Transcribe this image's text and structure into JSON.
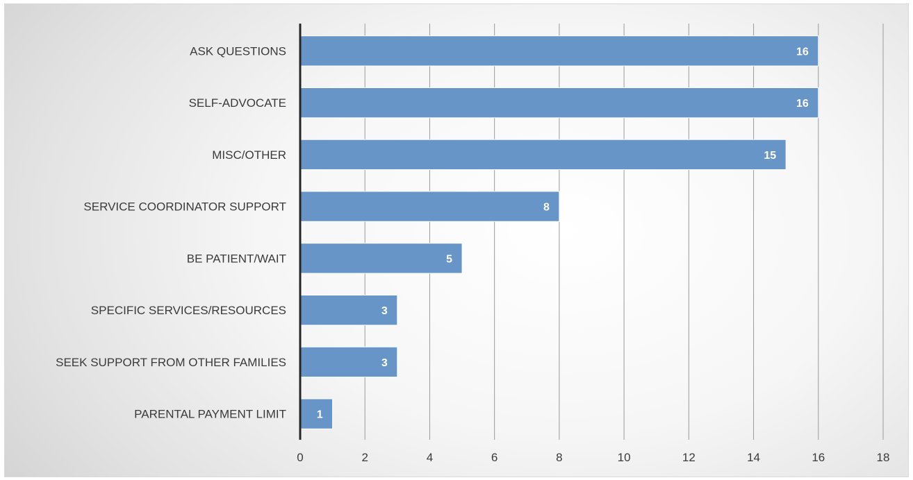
{
  "chart_data": {
    "type": "bar",
    "orientation": "horizontal",
    "title": "",
    "xlabel": "",
    "ylabel": "",
    "categories": [
      "ASK QUESTIONS",
      "SELF-ADVOCATE",
      "MISC/OTHER",
      "SERVICE COORDINATOR SUPPORT",
      "BE PATIENT/WAIT",
      "SPECIFIC SERVICES/RESOURCES",
      "SEEK SUPPORT FROM OTHER FAMILIES",
      "PARENTAL PAYMENT LIMIT"
    ],
    "values": [
      16,
      16,
      15,
      8,
      5,
      3,
      3,
      1
    ],
    "value_labels": [
      "16",
      "16",
      "15",
      "8",
      "5",
      "3",
      "3",
      "1"
    ],
    "xlim": [
      0,
      18
    ],
    "x_ticks": [
      0,
      2,
      4,
      6,
      8,
      10,
      12,
      14,
      16,
      18
    ],
    "x_tick_labels": [
      "0",
      "2",
      "4",
      "6",
      "8",
      "10",
      "12",
      "14",
      "16",
      "18"
    ],
    "grid": "vertical",
    "legend": "none",
    "data_labels": "inside-end",
    "bar_color": "#6795c8",
    "bar_edge_color": "#ffffff",
    "axis_color": "#262626",
    "grid_color": "#9a9a9a"
  }
}
